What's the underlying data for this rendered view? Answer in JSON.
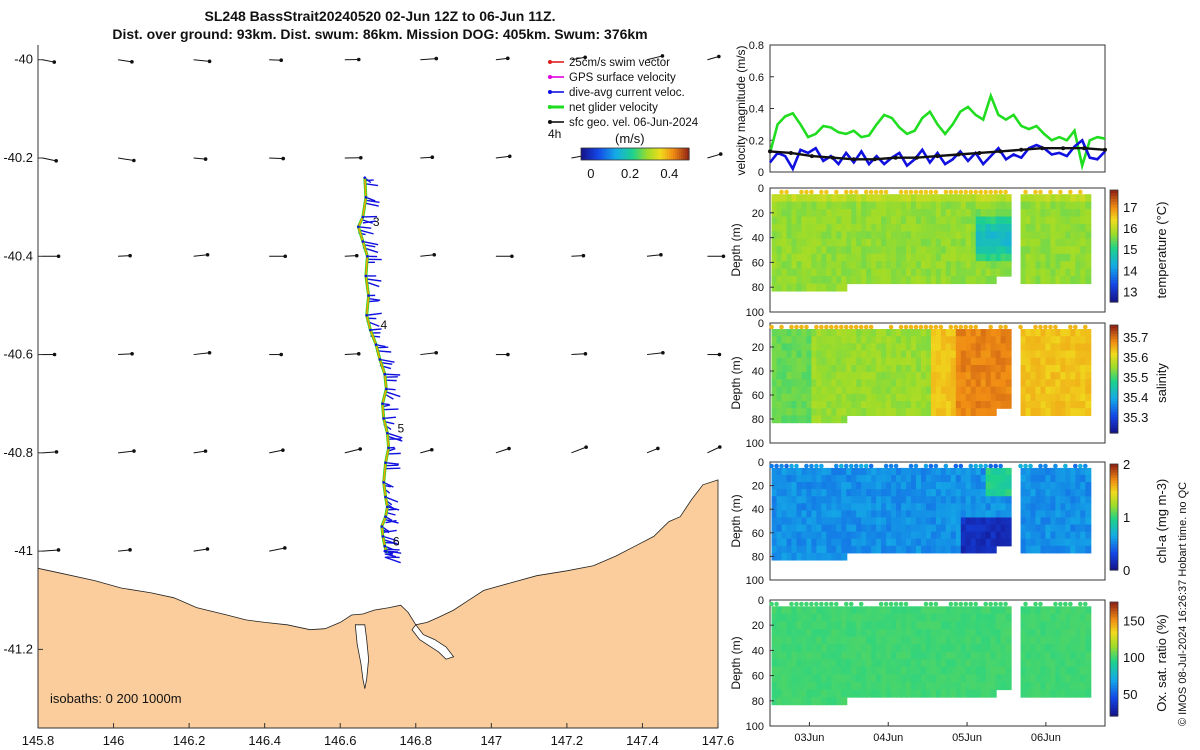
{
  "header": {
    "title_line1": "SL248 BassStrait20240520 02-Jun 12Z to 06-Jun 11Z.",
    "title_line2": "Dist. over ground: 93km. Dist. swum: 86km. Mission DOG: 405km. Swum: 376km"
  },
  "credit": "© IMOS 08-Jul-2024 16:26:37 Hobart time. no QC",
  "colors": {
    "land": "#fbcd9c",
    "gps_velocity": "#e000e0",
    "swim_vector": "#e02020",
    "dive_avg": "#1010e0",
    "net_velocity": "#20dd20",
    "sfc_geo": "#111111",
    "track": "#f5a000"
  },
  "chart_data": [
    {
      "type": "map",
      "name": "glider-track-map",
      "xlim": [
        145.8,
        147.6
      ],
      "ylim": [
        -41.36,
        -39.97
      ],
      "x_ticks": [
        "145.8",
        "146",
        "146.2",
        "146.4",
        "146.6",
        "146.8",
        "147",
        "147.2",
        "147.4",
        "147.6"
      ],
      "y_ticks": [
        "-40",
        "-40.2",
        "-40.4",
        "-40.6",
        "-40.8",
        "-41",
        "-41.2"
      ],
      "legend": [
        "25cm/s swim vector",
        "GPS surface velocity",
        "dive-avg current veloc.",
        "net glider velocity",
        "sfc geo. vel. 06-Jun-2024"
      ],
      "time_step_label": "4h",
      "colorbar_unit": "(m/s)",
      "colorbar_ticks": [
        "0",
        "0.2",
        "0.4"
      ],
      "colorbar_range": [
        -0.05,
        0.5
      ],
      "isobaths_label": "isobaths: 0   200  1000m",
      "day_labels": [
        "3",
        "4",
        "5",
        "6"
      ],
      "track": {
        "lon": [
          146.665,
          146.668,
          146.66,
          146.648,
          146.66,
          146.672,
          146.668,
          146.675,
          146.67,
          146.68,
          146.695,
          146.705,
          146.718,
          146.722,
          146.712,
          146.715,
          146.725,
          146.728,
          146.72,
          146.715,
          146.72,
          146.725,
          146.72,
          146.71,
          146.713,
          146.718,
          146.722,
          146.718
        ],
        "lat": [
          -40.24,
          -40.28,
          -40.32,
          -40.34,
          -40.37,
          -40.4,
          -40.44,
          -40.48,
          -40.52,
          -40.55,
          -40.58,
          -40.61,
          -40.64,
          -40.67,
          -40.7,
          -40.73,
          -40.76,
          -40.79,
          -40.82,
          -40.86,
          -40.89,
          -40.91,
          -40.93,
          -40.95,
          -40.97,
          -40.99,
          -41.0,
          -41.0
        ]
      },
      "day_marker_lat": [
        -40.33,
        -40.54,
        -40.75,
        -40.98
      ]
    },
    {
      "type": "line",
      "name": "velocity-magnitude",
      "ylabel": "velocity magnitude (m/s)",
      "ylim": [
        0,
        0.8
      ],
      "y_ticks": [
        "0",
        "0.2",
        "0.4",
        "0.6",
        "0.8"
      ],
      "xlim": [
        0,
        4.25
      ],
      "series": [
        {
          "name": "net glider velocity",
          "color": "#20dd20",
          "values": [
            0.12,
            0.3,
            0.35,
            0.37,
            0.3,
            0.22,
            0.24,
            0.29,
            0.28,
            0.25,
            0.24,
            0.26,
            0.22,
            0.23,
            0.3,
            0.36,
            0.34,
            0.28,
            0.24,
            0.26,
            0.34,
            0.38,
            0.3,
            0.24,
            0.3,
            0.38,
            0.41,
            0.36,
            0.33,
            0.48,
            0.36,
            0.33,
            0.36,
            0.29,
            0.27,
            0.29,
            0.24,
            0.2,
            0.22,
            0.2,
            0.26,
            0.04,
            0.2,
            0.22,
            0.21
          ]
        },
        {
          "name": "dive-avg current veloc.",
          "color": "#1010e0",
          "values": [
            0.06,
            0.12,
            0.1,
            0.02,
            0.14,
            0.12,
            0.15,
            0.07,
            0.1,
            0.05,
            0.12,
            0.06,
            0.13,
            0.05,
            0.1,
            0.05,
            0.09,
            0.12,
            0.04,
            0.08,
            0.14,
            0.06,
            0.12,
            0.05,
            0.08,
            0.13,
            0.07,
            0.12,
            0.05,
            0.1,
            0.15,
            0.08,
            0.11,
            0.09,
            0.15,
            0.17,
            0.15,
            0.11,
            0.12,
            0.1,
            0.16,
            0.2,
            0.09,
            0.08,
            0.13
          ]
        },
        {
          "name": "sfc geo. vel.",
          "color": "#111111",
          "values": [
            0.13,
            0.12,
            0.1,
            0.09,
            0.08,
            0.08,
            0.09,
            0.09,
            0.1,
            0.11,
            0.12,
            0.13,
            0.14,
            0.15,
            0.15,
            0.15,
            0.14
          ]
        }
      ]
    },
    {
      "type": "heatmap",
      "name": "temperature-section",
      "ylabel": "Depth (m)",
      "colorbar_label": "temperature (°C)",
      "colorbar_ticks": [
        "13",
        "14",
        "15",
        "16",
        "17"
      ],
      "colorbar_range": [
        12.5,
        17.8
      ],
      "y_ticks": [
        "0",
        "20",
        "40",
        "60",
        "80",
        "100"
      ],
      "background_value": 15.9,
      "feature_value": 14.6
    },
    {
      "type": "heatmap",
      "name": "salinity-section",
      "ylabel": "Depth (m)",
      "colorbar_label": "salinity",
      "colorbar_ticks": [
        "35.3",
        "35.4",
        "35.5",
        "35.6",
        "35.7"
      ],
      "colorbar_range": [
        35.22,
        35.76
      ],
      "y_ticks": [
        "0",
        "20",
        "40",
        "60",
        "80",
        "100"
      ],
      "background_value": 35.58,
      "feature_value": 35.7
    },
    {
      "type": "heatmap",
      "name": "chla-section",
      "ylabel": "Depth (m)",
      "colorbar_label": "chl-a (mg m-3)",
      "colorbar_ticks": [
        "0",
        "1",
        "2"
      ],
      "colorbar_range": [
        0,
        2
      ],
      "y_ticks": [
        "0",
        "20",
        "40",
        "60",
        "80",
        "100"
      ],
      "background_value": 0.6,
      "feature_value": 0.15
    },
    {
      "type": "heatmap",
      "name": "oxygen-section",
      "ylabel": "Depth (m)",
      "colorbar_label": "Ox. sat. ratio (%)",
      "colorbar_ticks": [
        "50",
        "100",
        "150"
      ],
      "colorbar_range": [
        20,
        175
      ],
      "y_ticks": [
        "0",
        "20",
        "40",
        "60",
        "80",
        "100"
      ],
      "background_value": 100,
      "feature_value": 100
    }
  ],
  "time_axis": {
    "ticks": [
      "03Jun",
      "04Jun",
      "05Jun",
      "06Jun"
    ],
    "tick_days": [
      0.5,
      1.5,
      2.5,
      3.5
    ],
    "xlim_days": [
      0,
      4.25
    ]
  }
}
